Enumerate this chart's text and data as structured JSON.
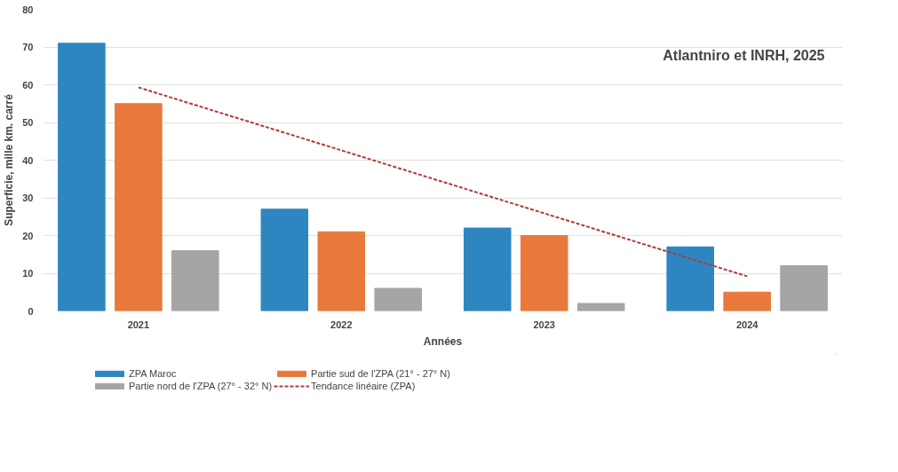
{
  "chart_data": {
    "type": "bar",
    "xlabel": "Années",
    "ylabel": "Superficie, mille km. carré",
    "categories": [
      "2021",
      "2022",
      "2023",
      "2024"
    ],
    "series": [
      {
        "name": "ZPA Maroc",
        "color": "#2e86c1",
        "values": [
          71,
          27,
          22,
          17
        ]
      },
      {
        "name": "Partie sud de l'ZPA (21° - 27° N)",
        "color": "#e8793a",
        "values": [
          55,
          21,
          20,
          5
        ]
      },
      {
        "name": "Partie nord de l'ZPA (27° - 32° N)",
        "color": "#a5a5a5",
        "values": [
          16,
          6,
          2,
          12
        ]
      },
      {
        "name": "Tendance linéaire (ZPA)",
        "type": "line",
        "line_style": "dashed",
        "color": "#b03a3a",
        "values": [
          59.3,
          42.6,
          25.9,
          9.2
        ]
      }
    ],
    "ylim": [
      0,
      80
    ],
    "yticks": [
      0,
      10,
      20,
      30,
      40,
      50,
      60,
      70,
      80
    ],
    "grid": "y",
    "legend": "bottom",
    "annotations": [
      "Atlantniro et INRH, 2025"
    ]
  }
}
